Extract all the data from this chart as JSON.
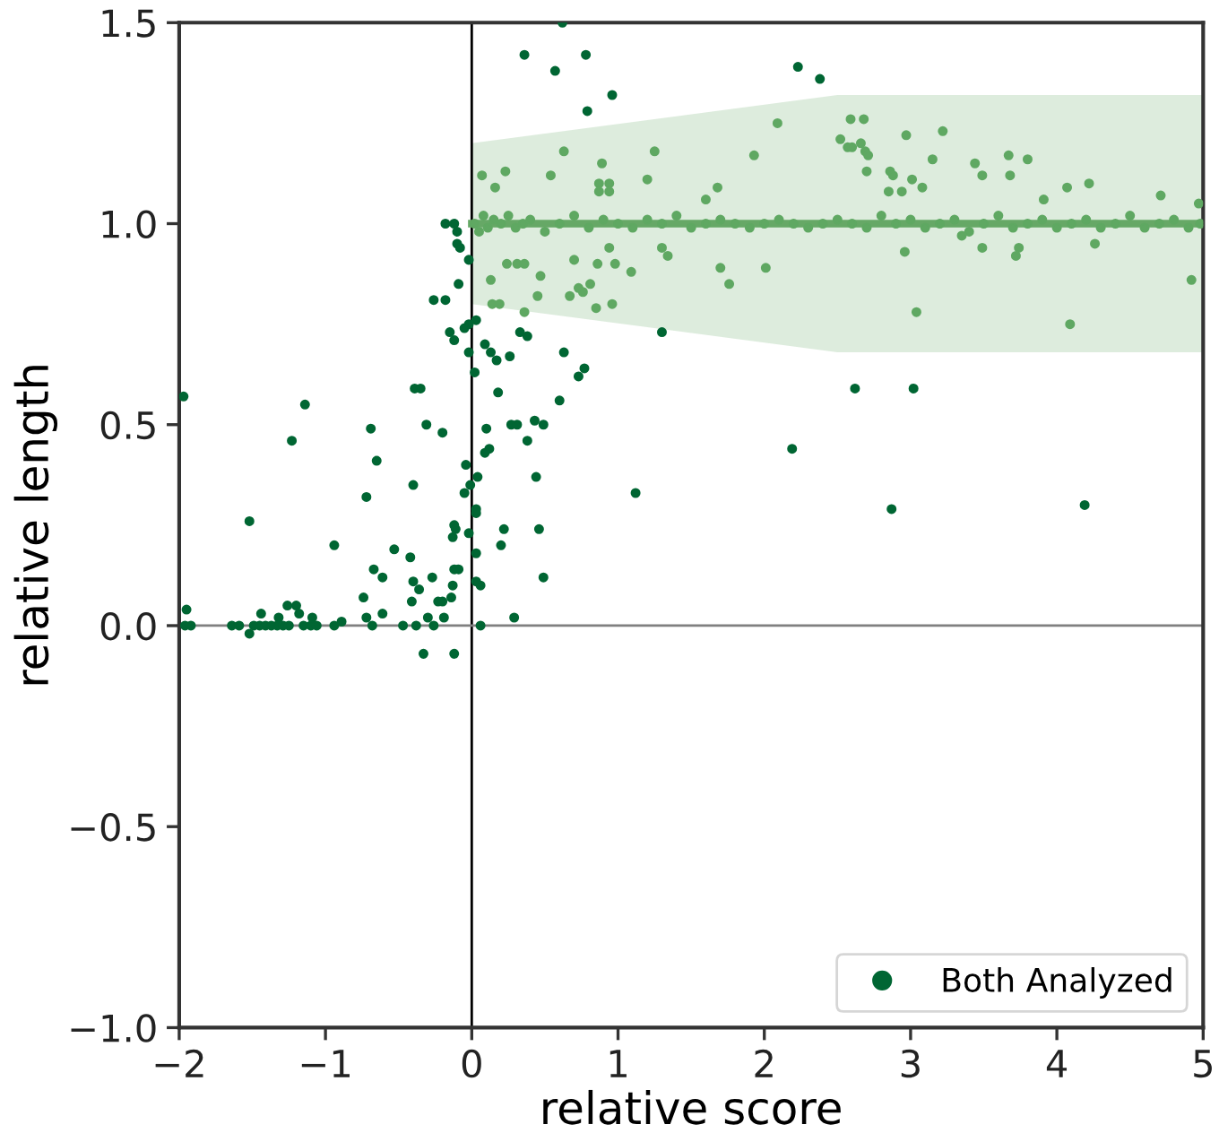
{
  "chart_data": {
    "type": "scatter",
    "xlabel": "relative score",
    "ylabel": "relative length",
    "xlim": [
      -2,
      5
    ],
    "ylim": [
      -1.0,
      1.5
    ],
    "xticks": [
      {
        "value": -2,
        "label": "−2"
      },
      {
        "value": -1,
        "label": "−1"
      },
      0,
      1,
      2,
      3,
      4,
      5
    ],
    "yticks": [
      {
        "value": -1.0,
        "label": "−1.0"
      },
      {
        "value": -0.5,
        "label": "−0.5"
      },
      {
        "value": 0.0,
        "label": "0.0"
      },
      {
        "value": 0.5,
        "label": "0.5"
      },
      {
        "value": 1.0,
        "label": "1.0"
      },
      {
        "value": 1.5,
        "label": "1.5"
      }
    ],
    "grid": false,
    "legend": "bottom right",
    "marker": "circle",
    "ref_lines": [
      {
        "axis": "x",
        "value": 0,
        "color": "#000000"
      },
      {
        "axis": "y",
        "value": 0,
        "color": "#808080"
      }
    ],
    "series": [
      {
        "type": "line",
        "color": "#66a866",
        "marker": "none",
        "x": [
          0,
          2.5,
          5
        ],
        "values": [
          1.0,
          1.0,
          1.0
        ],
        "lower": [
          0.8,
          0.68,
          0.68
        ],
        "upper": [
          1.2,
          1.32,
          1.32
        ]
      },
      {
        "color": "#5fa862",
        "x": [
          0.02,
          0.05,
          0.08,
          0.11,
          0.15,
          0.2,
          0.25,
          0.3,
          0.35,
          0.4,
          0.5,
          0.6,
          0.7,
          0.8,
          0.9,
          1.0,
          1.1,
          1.2,
          1.3,
          1.4,
          1.5,
          1.6,
          1.7,
          1.8,
          1.9,
          2.0,
          2.1,
          2.2,
          2.3,
          2.4,
          2.5,
          2.6,
          2.7,
          2.8,
          2.9,
          3.0,
          3.1,
          3.2,
          3.3,
          3.4,
          3.5,
          3.6,
          3.7,
          3.8,
          3.9,
          4.0,
          4.1,
          4.2,
          4.3,
          4.4,
          4.5,
          4.6,
          4.7,
          4.8,
          4.9,
          4.98,
          0.07,
          0.23,
          0.16,
          0.54,
          0.63,
          0.89,
          0.87,
          0.94,
          0.87,
          0.94,
          1.25,
          1.2,
          1.93,
          2.09,
          1.68,
          1.6,
          2.59,
          2.68,
          2.52,
          2.57,
          2.6,
          2.66,
          2.69,
          2.71,
          2.7,
          2.97,
          3.22,
          2.86,
          2.88,
          2.85,
          2.94,
          3.01,
          3.08,
          3.15,
          3.44,
          3.49,
          3.67,
          3.8,
          3.68,
          4.22,
          4.07,
          3.91,
          4.71,
          4.97,
          0.13,
          0.14,
          0.19,
          0.24,
          0.31,
          0.36,
          0.45,
          0.47,
          0.36,
          0.7,
          0.67,
          0.73,
          0.76,
          0.81,
          0.85,
          0.96,
          0.86,
          0.94,
          0.98,
          1.09,
          1.3,
          1.34,
          1.7,
          1.76,
          2.01,
          3.04,
          2.96,
          3.74,
          3.72,
          4.09,
          4.26,
          4.92,
          3.49,
          3.35
        ],
        "values": [
          1.0,
          0.98,
          1.02,
          0.99,
          1.01,
          1.0,
          1.02,
          0.99,
          1.0,
          1.01,
          0.98,
          1.0,
          1.02,
          0.99,
          1.01,
          1.0,
          0.99,
          1.01,
          1.0,
          1.02,
          0.99,
          1.0,
          1.01,
          1.0,
          0.99,
          1.0,
          1.01,
          1.0,
          0.99,
          1.0,
          1.01,
          1.0,
          0.99,
          1.02,
          1.0,
          1.01,
          0.99,
          1.0,
          1.01,
          0.98,
          1.0,
          1.02,
          0.99,
          1.0,
          1.01,
          0.99,
          1.0,
          1.01,
          0.99,
          1.0,
          1.02,
          0.99,
          1.0,
          1.01,
          0.99,
          1.0,
          1.12,
          1.13,
          1.09,
          1.12,
          1.18,
          1.15,
          1.1,
          1.1,
          1.08,
          1.08,
          1.18,
          1.11,
          1.17,
          1.25,
          1.09,
          1.06,
          1.26,
          1.26,
          1.21,
          1.19,
          1.19,
          1.2,
          1.18,
          1.17,
          1.13,
          1.22,
          1.23,
          1.13,
          1.12,
          1.08,
          1.08,
          1.11,
          1.09,
          1.16,
          1.15,
          1.12,
          1.17,
          1.16,
          1.12,
          1.1,
          1.09,
          1.06,
          1.07,
          1.05,
          0.86,
          0.8,
          0.8,
          0.9,
          0.9,
          0.9,
          0.82,
          0.87,
          0.78,
          0.91,
          0.82,
          0.84,
          0.83,
          0.85,
          0.79,
          0.8,
          0.9,
          0.94,
          0.9,
          0.88,
          0.94,
          0.92,
          0.89,
          0.85,
          0.89,
          0.78,
          0.93,
          0.94,
          0.92,
          0.75,
          0.95,
          0.86,
          0.94,
          0.97
        ]
      },
      {
        "name": "Both Analyzed",
        "color": "#006633",
        "x": [
          0.62,
          0.36,
          0.78,
          0.57,
          0.96,
          0.79,
          2.23,
          2.38,
          -0.18,
          -0.12,
          -0.1,
          -0.1,
          -0.08,
          -0.02,
          -0.09,
          -0.26,
          -0.18,
          0.03,
          -0.02,
          -0.05,
          -0.15,
          -0.12,
          0.09,
          0.13,
          -0.02,
          0.17,
          0.26,
          0.02,
          0.33,
          0.38,
          1.3,
          0.63,
          0.77,
          0.73,
          -0.39,
          -0.35,
          0.18,
          0.6,
          -1.97,
          -1.14,
          -1.23,
          -0.69,
          -0.31,
          -0.2,
          0.1,
          0.27,
          0.31,
          0.43,
          0.49,
          0.38,
          0.12,
          0.09,
          -0.65,
          -0.04,
          0.04,
          0.44,
          -0.72,
          -0.4,
          -0.01,
          -0.05,
          1.12,
          0.03,
          0.03,
          -1.52,
          -0.12,
          -0.11,
          0.22,
          0.46,
          -0.02,
          -0.13,
          -0.94,
          0.2,
          -0.53,
          0.03,
          -0.42,
          -0.67,
          -0.12,
          -0.09,
          -0.61,
          -0.27,
          0.49,
          -0.4,
          0.03,
          0.06,
          -0.13,
          -0.36,
          -0.74,
          -0.14,
          -0.41,
          -0.23,
          -0.2,
          -1.26,
          -1.2,
          -1.44,
          -1.18,
          -1.95,
          -0.61,
          -1.32,
          -1.09,
          -0.72,
          -0.3,
          -0.19,
          0.29,
          -0.89,
          -1.96,
          -1.92,
          -1.64,
          -1.59,
          -1.49,
          -1.45,
          -1.41,
          -1.37,
          -1.33,
          -1.29,
          -1.25,
          -1.15,
          -1.1,
          -1.06,
          -0.94,
          -0.68,
          -0.47,
          -0.38,
          -0.26,
          0.06,
          -1.52,
          -0.33,
          -0.12,
          2.62,
          3.02,
          2.19,
          2.87,
          4.19
        ],
        "values": [
          1.5,
          1.42,
          1.42,
          1.38,
          1.32,
          1.28,
          1.39,
          1.36,
          1.0,
          1.0,
          0.98,
          0.95,
          0.94,
          0.91,
          0.85,
          0.81,
          0.81,
          0.76,
          0.75,
          0.74,
          0.73,
          0.71,
          0.7,
          0.68,
          0.68,
          0.66,
          0.67,
          0.63,
          0.73,
          0.72,
          0.73,
          0.68,
          0.64,
          0.62,
          0.59,
          0.59,
          0.58,
          0.56,
          0.57,
          0.55,
          0.46,
          0.49,
          0.5,
          0.48,
          0.49,
          0.5,
          0.5,
          0.51,
          0.5,
          0.46,
          0.44,
          0.43,
          0.41,
          0.4,
          0.37,
          0.37,
          0.32,
          0.35,
          0.35,
          0.33,
          0.33,
          0.29,
          0.28,
          0.26,
          0.25,
          0.24,
          0.24,
          0.24,
          0.23,
          0.22,
          0.2,
          0.2,
          0.19,
          0.18,
          0.17,
          0.14,
          0.14,
          0.14,
          0.12,
          0.12,
          0.12,
          0.11,
          0.11,
          0.1,
          0.1,
          0.09,
          0.07,
          0.07,
          0.06,
          0.06,
          0.06,
          0.05,
          0.05,
          0.03,
          0.03,
          0.04,
          0.03,
          0.02,
          0.02,
          0.02,
          0.02,
          0.02,
          0.02,
          0.01,
          0,
          0,
          0,
          0,
          0,
          0,
          0,
          0,
          0,
          0,
          0,
          0,
          0,
          0,
          0,
          0,
          0,
          0,
          0,
          0,
          -0.02,
          -0.07,
          -0.07,
          0.59,
          0.59,
          0.44,
          0.29,
          0.3
        ]
      }
    ]
  }
}
